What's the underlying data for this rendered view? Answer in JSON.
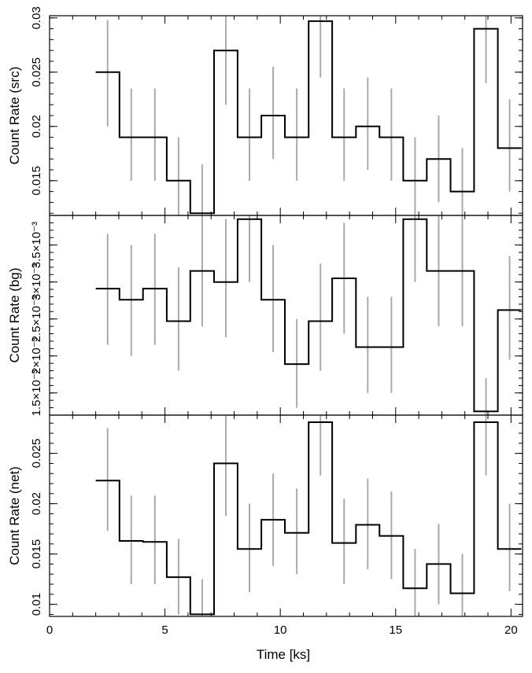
{
  "chart_data": {
    "type": "line",
    "x_label": "Time [ks]",
    "x_lim": [
      0,
      20.5
    ],
    "x_ticks": [
      0,
      5,
      10,
      15,
      20
    ],
    "x_minor_step": 1,
    "bin_edges": [
      2.0,
      3.03,
      4.05,
      5.08,
      6.1,
      7.13,
      8.15,
      9.18,
      10.2,
      11.23,
      12.25,
      13.28,
      14.3,
      15.33,
      16.35,
      17.38,
      18.4,
      19.43,
      20.45
    ],
    "panels": [
      {
        "id": "src",
        "y_label": "Count Rate (src)",
        "y_lim": [
          0.0118,
          0.0302
        ],
        "y_ticks": [
          0.015,
          0.02,
          0.025,
          0.03
        ],
        "y_tick_labels": [
          "0.015",
          "0.02",
          "0.025",
          "0.03"
        ],
        "y_minor_step": 0.001,
        "values": [
          0.025,
          0.019,
          0.019,
          0.015,
          0.012,
          0.027,
          0.019,
          0.021,
          0.019,
          0.0297,
          0.019,
          0.02,
          0.019,
          0.015,
          0.017,
          0.014,
          0.029,
          0.018
        ],
        "err_low": [
          0.02,
          0.015,
          0.015,
          0.011,
          0.008,
          0.022,
          0.015,
          0.017,
          0.015,
          0.0245,
          0.015,
          0.016,
          0.015,
          0.011,
          0.013,
          0.01,
          0.024,
          0.014
        ],
        "err_high": [
          0.0298,
          0.0235,
          0.0235,
          0.019,
          0.0165,
          0.033,
          0.0235,
          0.0255,
          0.0235,
          0.035,
          0.0235,
          0.0245,
          0.0235,
          0.019,
          0.021,
          0.018,
          0.034,
          0.0225
        ]
      },
      {
        "id": "bg",
        "y_label": "Count Rate (bg)",
        "y_lim": [
          0.0012,
          0.0039
        ],
        "y_ticks": [
          0.0015,
          0.002,
          0.0025,
          0.003,
          0.0035
        ],
        "y_tick_labels": [
          "1.5×10⁻³",
          "2×10⁻³",
          "2.5×10⁻³",
          "3×10⁻³",
          "3.5×10⁻³"
        ],
        "y_minor_step": 0.0001,
        "values": [
          0.00291,
          0.00276,
          0.00291,
          0.00247,
          0.00315,
          0.003,
          0.00385,
          0.00276,
          0.00189,
          0.00247,
          0.00305,
          0.00212,
          0.00212,
          0.00385,
          0.00315,
          0.00315,
          0.00125,
          0.00262
        ],
        "err_low": [
          0.00215,
          0.002,
          0.00215,
          0.0018,
          0.0024,
          0.00225,
          0.003,
          0.00205,
          0.0013,
          0.0018,
          0.0023,
          0.0015,
          0.0015,
          0.003,
          0.0024,
          0.0024,
          0.0008,
          0.00195
        ],
        "err_high": [
          0.00365,
          0.0035,
          0.00365,
          0.0032,
          0.004,
          0.00385,
          0.0047,
          0.0035,
          0.0025,
          0.00325,
          0.0038,
          0.0028,
          0.0028,
          0.0047,
          0.004,
          0.004,
          0.0017,
          0.00335
        ]
      },
      {
        "id": "net",
        "y_label": "Count Rate (net)",
        "y_lim": [
          0.0088,
          0.0288
        ],
        "y_ticks": [
          0.01,
          0.015,
          0.02,
          0.025
        ],
        "y_tick_labels": [
          "0.01",
          "0.015",
          "0.02",
          "0.025"
        ],
        "y_minor_step": 0.001,
        "values": [
          0.0223,
          0.0163,
          0.0162,
          0.0127,
          0.009,
          0.024,
          0.0155,
          0.0184,
          0.0171,
          0.0281,
          0.0161,
          0.0179,
          0.0168,
          0.0116,
          0.014,
          0.0111,
          0.0281,
          0.0155
        ],
        "err_low": [
          0.0173,
          0.012,
          0.012,
          0.009,
          0.006,
          0.0188,
          0.0112,
          0.0138,
          0.013,
          0.0228,
          0.012,
          0.0135,
          0.0125,
          0.008,
          0.01,
          0.007,
          0.0228,
          0.0113
        ],
        "err_high": [
          0.0275,
          0.0208,
          0.0208,
          0.0165,
          0.0125,
          0.0295,
          0.02,
          0.023,
          0.0215,
          0.0335,
          0.0205,
          0.0225,
          0.0212,
          0.0155,
          0.018,
          0.015,
          0.0335,
          0.02
        ]
      }
    ]
  }
}
